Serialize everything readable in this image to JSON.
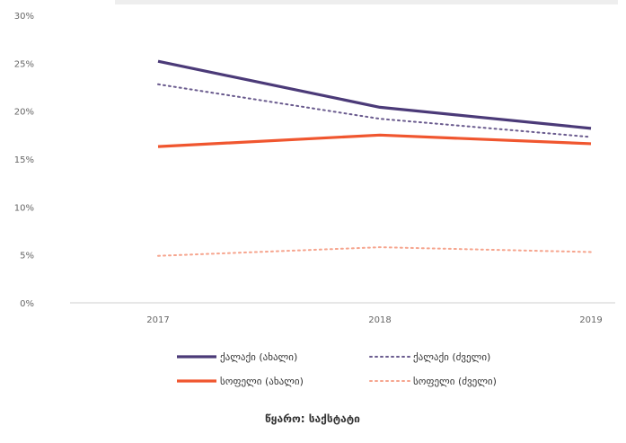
{
  "chart_data": {
    "type": "line",
    "title": "",
    "xlabel": "",
    "ylabel": "",
    "categories": [
      "2017",
      "2018",
      "2019"
    ],
    "y_ticks": [
      "0%",
      "5%",
      "10%",
      "15%",
      "20%",
      "25%",
      "30%"
    ],
    "ylim": [
      0,
      30
    ],
    "grid": false,
    "legend_position": "bottom",
    "series": [
      {
        "name": "ქალაქი (ახალი)",
        "values": [
          25.2,
          20.4,
          18.2
        ],
        "color": "#4b3a78",
        "style": "solid"
      },
      {
        "name": "ქალაქი (ძველი)",
        "values": [
          22.8,
          19.2,
          17.3
        ],
        "color": "#6a5b8e",
        "style": "dotted"
      },
      {
        "name": "სოფელი (ახალი)",
        "values": [
          16.3,
          17.5,
          16.6
        ],
        "color": "#f0562f",
        "style": "solid"
      },
      {
        "name": "სოფელი (ძველი)",
        "values": [
          4.9,
          5.8,
          5.3
        ],
        "color": "#f6a48d",
        "style": "dotted"
      }
    ],
    "source": "წყარო: საქსტატი"
  }
}
